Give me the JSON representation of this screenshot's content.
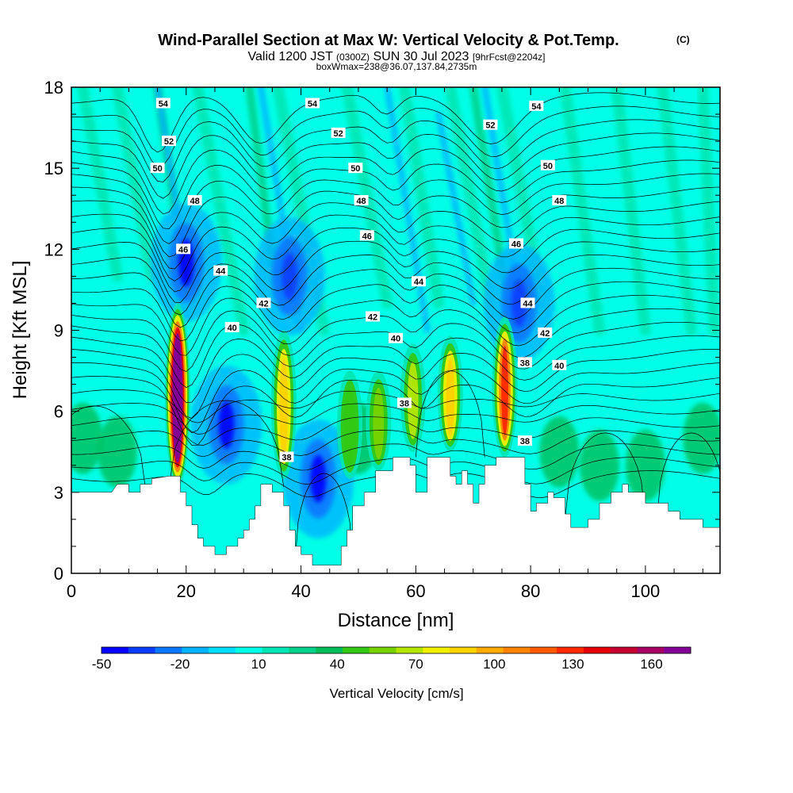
{
  "chart_data": {
    "type": "heatmap",
    "title": "Wind-Parallel Section at Max W: Vertical Velocity & Pot.Temp.",
    "title_mark": "(C)",
    "subtitle": {
      "part1": "Valid 1200 JST",
      "part2": "(0300Z)",
      "part3": "SUN 30 Jul 2023",
      "part4": "[9hrFcst@2204z]"
    },
    "subtitle2": "boxWmax=238@36.07,137.84,2735m",
    "xlabel": "Distance [nm]",
    "ylabel": "Height [Kft MSL]",
    "xlim": [
      0,
      113
    ],
    "ylim": [
      0,
      18
    ],
    "xticks": [
      0,
      20,
      40,
      60,
      80,
      100
    ],
    "yticks": [
      0,
      3,
      6,
      9,
      12,
      15,
      18
    ],
    "colorbar": {
      "label": "Vertical Velocity [cm/s]",
      "tick_labels": [
        "-50",
        "-20",
        "10",
        "40",
        "70",
        "100",
        "130",
        "160"
      ],
      "tick_values": [
        -50,
        -20,
        10,
        40,
        70,
        100,
        130,
        160
      ],
      "min": -50,
      "max": 175,
      "step": 10,
      "colors": [
        "#0000ff",
        "#0a3cff",
        "#0a78ff",
        "#00b4ff",
        "#00dcff",
        "#00ffe6",
        "#00e6b4",
        "#00d28c",
        "#00be5a",
        "#32c814",
        "#78d200",
        "#b4e600",
        "#f0f000",
        "#ffd200",
        "#ffaa00",
        "#ff8200",
        "#ff5a00",
        "#ff2800",
        "#e6000a",
        "#c80032",
        "#aa0064",
        "#820096"
      ]
    },
    "features": {
      "updrafts": [
        {
          "x": 18.5,
          "z_bottom": 3.2,
          "z_top": 10.0,
          "w": 200
        },
        {
          "x": 37.0,
          "z_bottom": 3.5,
          "z_top": 9.0,
          "w": 80
        },
        {
          "x": 48.5,
          "z_bottom": 3.5,
          "z_top": 7.5,
          "w": 40
        },
        {
          "x": 53.5,
          "z_bottom": 3.8,
          "z_top": 7.5,
          "w": 55
        },
        {
          "x": 59.5,
          "z_bottom": 4.5,
          "z_top": 8.5,
          "w": 60
        },
        {
          "x": 66.0,
          "z_bottom": 4.5,
          "z_top": 8.8,
          "w": 80
        },
        {
          "x": 75.5,
          "z_bottom": 4.3,
          "z_top": 9.5,
          "w": 120
        }
      ],
      "downdrafts": [
        {
          "x": 27,
          "z": 5.5,
          "w": -45
        },
        {
          "x": 43,
          "z": 3.5,
          "w": -45
        },
        {
          "x": 20,
          "z": 11.5,
          "w": -45
        },
        {
          "x": 38,
          "z": 11.0,
          "w": -40
        },
        {
          "x": 78,
          "z": 10.0,
          "w": -40
        }
      ]
    },
    "terrain_kft": [
      [
        0,
        3.0
      ],
      [
        3.5,
        3.0
      ],
      [
        4,
        3.0
      ],
      [
        7,
        3.0
      ],
      [
        8,
        3.3
      ],
      [
        10,
        3.3
      ],
      [
        10,
        3.0
      ],
      [
        12,
        3.0
      ],
      [
        12,
        3.3
      ],
      [
        14,
        3.3
      ],
      [
        14,
        3.5
      ],
      [
        17,
        3.6
      ],
      [
        19,
        3.6
      ],
      [
        19,
        3.0
      ],
      [
        20,
        3.0
      ],
      [
        20,
        2.5
      ],
      [
        21,
        2.5
      ],
      [
        21,
        1.8
      ],
      [
        22,
        1.8
      ],
      [
        22,
        1.3
      ],
      [
        23,
        1.3
      ],
      [
        23,
        1.0
      ],
      [
        25,
        1.0
      ],
      [
        25,
        0.7
      ],
      [
        27,
        0.7
      ],
      [
        27,
        1.0
      ],
      [
        29,
        1.0
      ],
      [
        29,
        1.3
      ],
      [
        30,
        1.3
      ],
      [
        30,
        1.6
      ],
      [
        31,
        1.6
      ],
      [
        31,
        2.0
      ],
      [
        32,
        2.0
      ],
      [
        32,
        2.5
      ],
      [
        33,
        2.5
      ],
      [
        33,
        3.3
      ],
      [
        35,
        3.3
      ],
      [
        35,
        3.0
      ],
      [
        37,
        3.0
      ],
      [
        37,
        2.5
      ],
      [
        38,
        2.5
      ],
      [
        38,
        1.6
      ],
      [
        39,
        1.6
      ],
      [
        39,
        1.0
      ],
      [
        40,
        1.0
      ],
      [
        40,
        0.7
      ],
      [
        42,
        0.7
      ],
      [
        42,
        0.3
      ],
      [
        47,
        0.3
      ],
      [
        47,
        1.0
      ],
      [
        48,
        1.0
      ],
      [
        48,
        1.6
      ],
      [
        49,
        1.6
      ],
      [
        49,
        2.5
      ],
      [
        51,
        2.5
      ],
      [
        51,
        3.0
      ],
      [
        53,
        3.0
      ],
      [
        53,
        3.8
      ],
      [
        56,
        3.8
      ],
      [
        56,
        4.3
      ],
      [
        59,
        4.3
      ],
      [
        59,
        4.0
      ],
      [
        60,
        4.0
      ],
      [
        60,
        3.0
      ],
      [
        62,
        3.0
      ],
      [
        62,
        4.3
      ],
      [
        66,
        4.3
      ],
      [
        66,
        3.6
      ],
      [
        67,
        3.6
      ],
      [
        67,
        3.3
      ],
      [
        68,
        3.3
      ],
      [
        68,
        3.8
      ],
      [
        69,
        3.8
      ],
      [
        69,
        3.3
      ],
      [
        70,
        3.3
      ],
      [
        70,
        2.6
      ],
      [
        71,
        2.6
      ],
      [
        71,
        3.3
      ],
      [
        72,
        3.3
      ],
      [
        72,
        4.0
      ],
      [
        74,
        4.0
      ],
      [
        74,
        4.3
      ],
      [
        79,
        4.3
      ],
      [
        79,
        3.3
      ],
      [
        80,
        3.3
      ],
      [
        80,
        2.3
      ],
      [
        81,
        2.3
      ],
      [
        81,
        2.6
      ],
      [
        83,
        2.6
      ],
      [
        83,
        3.0
      ],
      [
        84,
        3.0
      ],
      [
        84,
        2.8
      ],
      [
        86,
        2.8
      ],
      [
        86,
        2.2
      ],
      [
        87,
        2.2
      ],
      [
        87,
        1.7
      ],
      [
        90,
        1.7
      ],
      [
        90,
        2.0
      ],
      [
        92,
        2.0
      ],
      [
        92,
        2.6
      ],
      [
        94,
        2.6
      ],
      [
        94,
        3.0
      ],
      [
        96,
        3.0
      ],
      [
        96,
        3.3
      ],
      [
        97,
        3.3
      ],
      [
        97,
        3.0
      ],
      [
        100,
        3.0
      ],
      [
        100,
        2.6
      ],
      [
        104,
        2.6
      ],
      [
        104,
        2.3
      ],
      [
        106,
        2.3
      ],
      [
        106,
        2.0
      ],
      [
        110,
        2.0
      ],
      [
        110,
        1.7
      ],
      [
        113,
        1.7
      ]
    ],
    "contour_labels": [
      {
        "text": "54",
        "x": 16.0,
        "z": 17.4
      },
      {
        "text": "54",
        "x": 42.0,
        "z": 17.4
      },
      {
        "text": "54",
        "x": 81.0,
        "z": 17.3
      },
      {
        "text": "52",
        "x": 17.0,
        "z": 16.0
      },
      {
        "text": "52",
        "x": 46.5,
        "z": 16.3
      },
      {
        "text": "52",
        "x": 73.0,
        "z": 16.6
      },
      {
        "text": "50",
        "x": 15.0,
        "z": 15.0
      },
      {
        "text": "50",
        "x": 49.5,
        "z": 15.0
      },
      {
        "text": "50",
        "x": 83.0,
        "z": 15.1
      },
      {
        "text": "48",
        "x": 21.5,
        "z": 13.8
      },
      {
        "text": "48",
        "x": 50.5,
        "z": 13.8
      },
      {
        "text": "48",
        "x": 85.0,
        "z": 13.8
      },
      {
        "text": "46",
        "x": 19.5,
        "z": 12.0
      },
      {
        "text": "46",
        "x": 51.5,
        "z": 12.5
      },
      {
        "text": "46",
        "x": 77.5,
        "z": 12.2
      },
      {
        "text": "44",
        "x": 26.0,
        "z": 11.2
      },
      {
        "text": "44",
        "x": 60.5,
        "z": 10.8
      },
      {
        "text": "44",
        "x": 79.5,
        "z": 10.0
      },
      {
        "text": "42",
        "x": 33.5,
        "z": 10.0
      },
      {
        "text": "42",
        "x": 52.5,
        "z": 9.5
      },
      {
        "text": "42",
        "x": 82.5,
        "z": 8.9
      },
      {
        "text": "40",
        "x": 28.0,
        "z": 9.1
      },
      {
        "text": "40",
        "x": 56.5,
        "z": 8.7
      },
      {
        "text": "40",
        "x": 85.0,
        "z": 7.7
      },
      {
        "text": "38",
        "x": 79.0,
        "z": 7.8
      },
      {
        "text": "38",
        "x": 58.0,
        "z": 6.3
      },
      {
        "text": "38",
        "x": 79.0,
        "z": 4.9
      },
      {
        "text": "38",
        "x": 37.5,
        "z": 4.3
      }
    ]
  },
  "colors": {
    "background_field": "#00ffe6",
    "terrain": "#ffffff",
    "contour": "#000000"
  }
}
